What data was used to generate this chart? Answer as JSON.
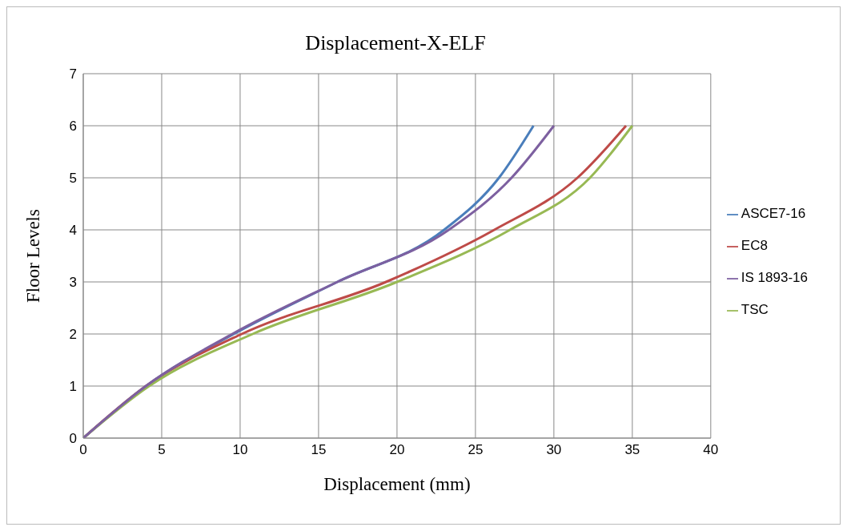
{
  "chart_data": {
    "type": "line",
    "title": "Displacement-X-ELF",
    "xlabel": "Displacement (mm)",
    "ylabel": "Floor Levels",
    "xlim": [
      0,
      40
    ],
    "xticks": [
      0,
      5,
      10,
      15,
      20,
      25,
      30,
      35,
      40
    ],
    "ylim": [
      0,
      7
    ],
    "yticks": [
      0,
      1,
      2,
      3,
      4,
      5,
      6,
      7
    ],
    "grid": true,
    "legend": "right",
    "marker": "none",
    "line_style": "solid",
    "series": [
      {
        "name": "ASCE7-16",
        "color": "#4a7ebb",
        "x": [
          0,
          4,
          9.6,
          16.2,
          23,
          26.5,
          28.7
        ],
        "values": [
          0,
          1,
          2,
          3,
          4,
          5,
          6
        ]
      },
      {
        "name": "EC8",
        "color": "#be4b48",
        "x": [
          0,
          4,
          10.1,
          19.3,
          26.2,
          31.5,
          34.6
        ],
        "values": [
          0,
          1,
          2,
          3,
          4,
          5,
          6
        ]
      },
      {
        "name": "TSC",
        "color": "#98b954",
        "x": [
          0,
          4.2,
          10.8,
          20,
          27.2,
          32.3,
          35
        ],
        "values": [
          0,
          1,
          2,
          3,
          4,
          5,
          6
        ]
      },
      {
        "name": "IS 1893-16",
        "color": "#7d60a0",
        "x": [
          0,
          4,
          9.5,
          16.2,
          23.3,
          27.3,
          30
        ],
        "values": [
          0,
          1,
          2,
          3,
          4,
          5,
          6
        ]
      }
    ]
  }
}
